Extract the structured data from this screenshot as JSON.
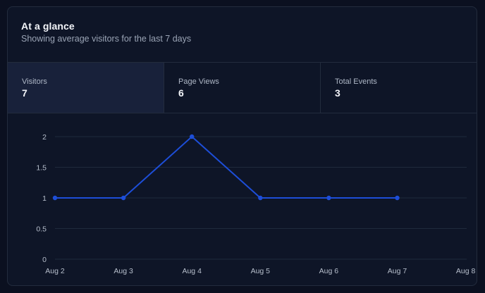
{
  "header": {
    "title": "At a glance",
    "subtitle": "Showing average visitors for the last 7 days"
  },
  "stats": [
    {
      "label": "Visitors",
      "value": "7",
      "active": true
    },
    {
      "label": "Page Views",
      "value": "6",
      "active": false
    },
    {
      "label": "Total Events",
      "value": "3",
      "active": false
    }
  ],
  "colors": {
    "line": "#1d4ed8",
    "grid": "#1f2a3c",
    "background": "#0e1527"
  },
  "chart_data": {
    "type": "line",
    "x": [
      "Aug 2",
      "Aug 3",
      "Aug 4",
      "Aug 5",
      "Aug 6",
      "Aug 7",
      "Aug 8"
    ],
    "series": [
      {
        "values": [
          1,
          1,
          2,
          1,
          1,
          1,
          null
        ]
      }
    ],
    "yticks": [
      "0",
      "0.5",
      "1",
      "1.5",
      "2"
    ],
    "ylim": [
      0,
      2
    ],
    "grid": true,
    "legend": "none"
  }
}
